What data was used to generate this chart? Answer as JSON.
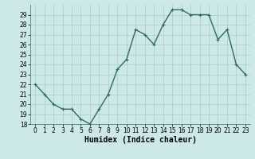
{
  "x": [
    0,
    1,
    2,
    3,
    4,
    5,
    6,
    7,
    8,
    9,
    10,
    11,
    12,
    13,
    14,
    15,
    16,
    17,
    18,
    19,
    20,
    21,
    22,
    23
  ],
  "y": [
    22,
    21,
    20,
    19.5,
    19.5,
    18.5,
    18,
    19.5,
    21,
    23.5,
    24.5,
    27.5,
    27,
    26,
    28,
    29.5,
    29.5,
    29,
    29,
    29,
    26.5,
    27.5,
    24,
    23
  ],
  "line_color": "#2e6b5e",
  "marker": "+",
  "marker_size": 3,
  "bg_color": "#cce8e8",
  "grid_color": "#aacccc",
  "xlabel": "Humidex (Indice chaleur)",
  "ylim": [
    18,
    30
  ],
  "xlim": [
    -0.5,
    23.5
  ],
  "yticks": [
    18,
    19,
    20,
    21,
    22,
    23,
    24,
    25,
    26,
    27,
    28,
    29
  ],
  "xticks": [
    0,
    1,
    2,
    3,
    4,
    5,
    6,
    7,
    8,
    9,
    10,
    11,
    12,
    13,
    14,
    15,
    16,
    17,
    18,
    19,
    20,
    21,
    22,
    23
  ],
  "tick_fontsize": 5.5,
  "xlabel_fontsize": 7,
  "line_width": 1.0
}
